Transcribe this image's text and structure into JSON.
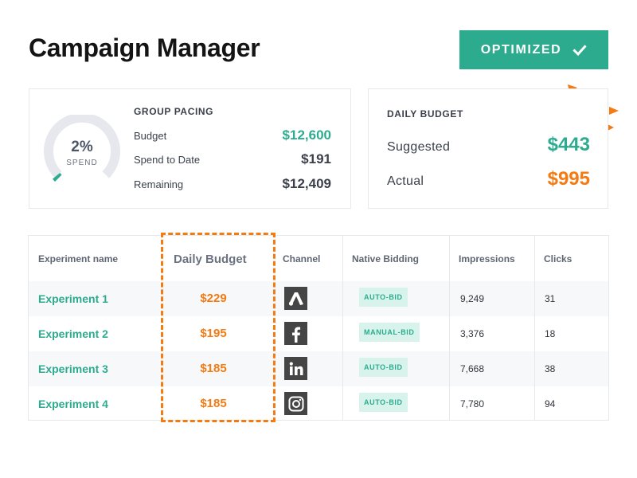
{
  "header": {
    "title": "Campaign Manager",
    "status_button_label": "OPTIMIZED",
    "status_icon": "check-icon"
  },
  "colors": {
    "accent_teal": "#2cab8f",
    "accent_orange": "#f47b12",
    "badge_bg": "#d8f3ec"
  },
  "group_pacing": {
    "label": "GROUP PACING",
    "gauge_percent": "2%",
    "gauge_percent_value": 0.02,
    "gauge_sub": "SPEND",
    "rows": [
      {
        "label": "Budget",
        "value": "$12,600"
      },
      {
        "label": "Spend to Date",
        "value": "$191"
      },
      {
        "label": "Remaining",
        "value": "$12,409"
      }
    ]
  },
  "daily_budget": {
    "label": "DAILY BUDGET",
    "suggested_label": "Suggested",
    "suggested_value": "$443",
    "actual_label": "Actual",
    "actual_value": "$995"
  },
  "table": {
    "headers": [
      "Experiment name",
      "Daily Budget",
      "Channel",
      "Native Bidding",
      "Impressions",
      "Clicks"
    ],
    "rows": [
      {
        "name": "Experiment 1",
        "budget": "$229",
        "channel_icon": "adwords-icon",
        "bidding": "AUTO-BID",
        "impressions": "9,249",
        "clicks": "31"
      },
      {
        "name": "Experiment 2",
        "budget": "$195",
        "channel_icon": "facebook-icon",
        "bidding": "MANUAL-BID",
        "impressions": "3,376",
        "clicks": "18"
      },
      {
        "name": "Experiment 3",
        "budget": "$185",
        "channel_icon": "linkedin-icon",
        "bidding": "AUTO-BID",
        "impressions": "7,668",
        "clicks": "38"
      },
      {
        "name": "Experiment 4",
        "budget": "$185",
        "channel_icon": "instagram-icon",
        "bidding": "AUTO-BID",
        "impressions": "7,780",
        "clicks": "94"
      }
    ]
  }
}
